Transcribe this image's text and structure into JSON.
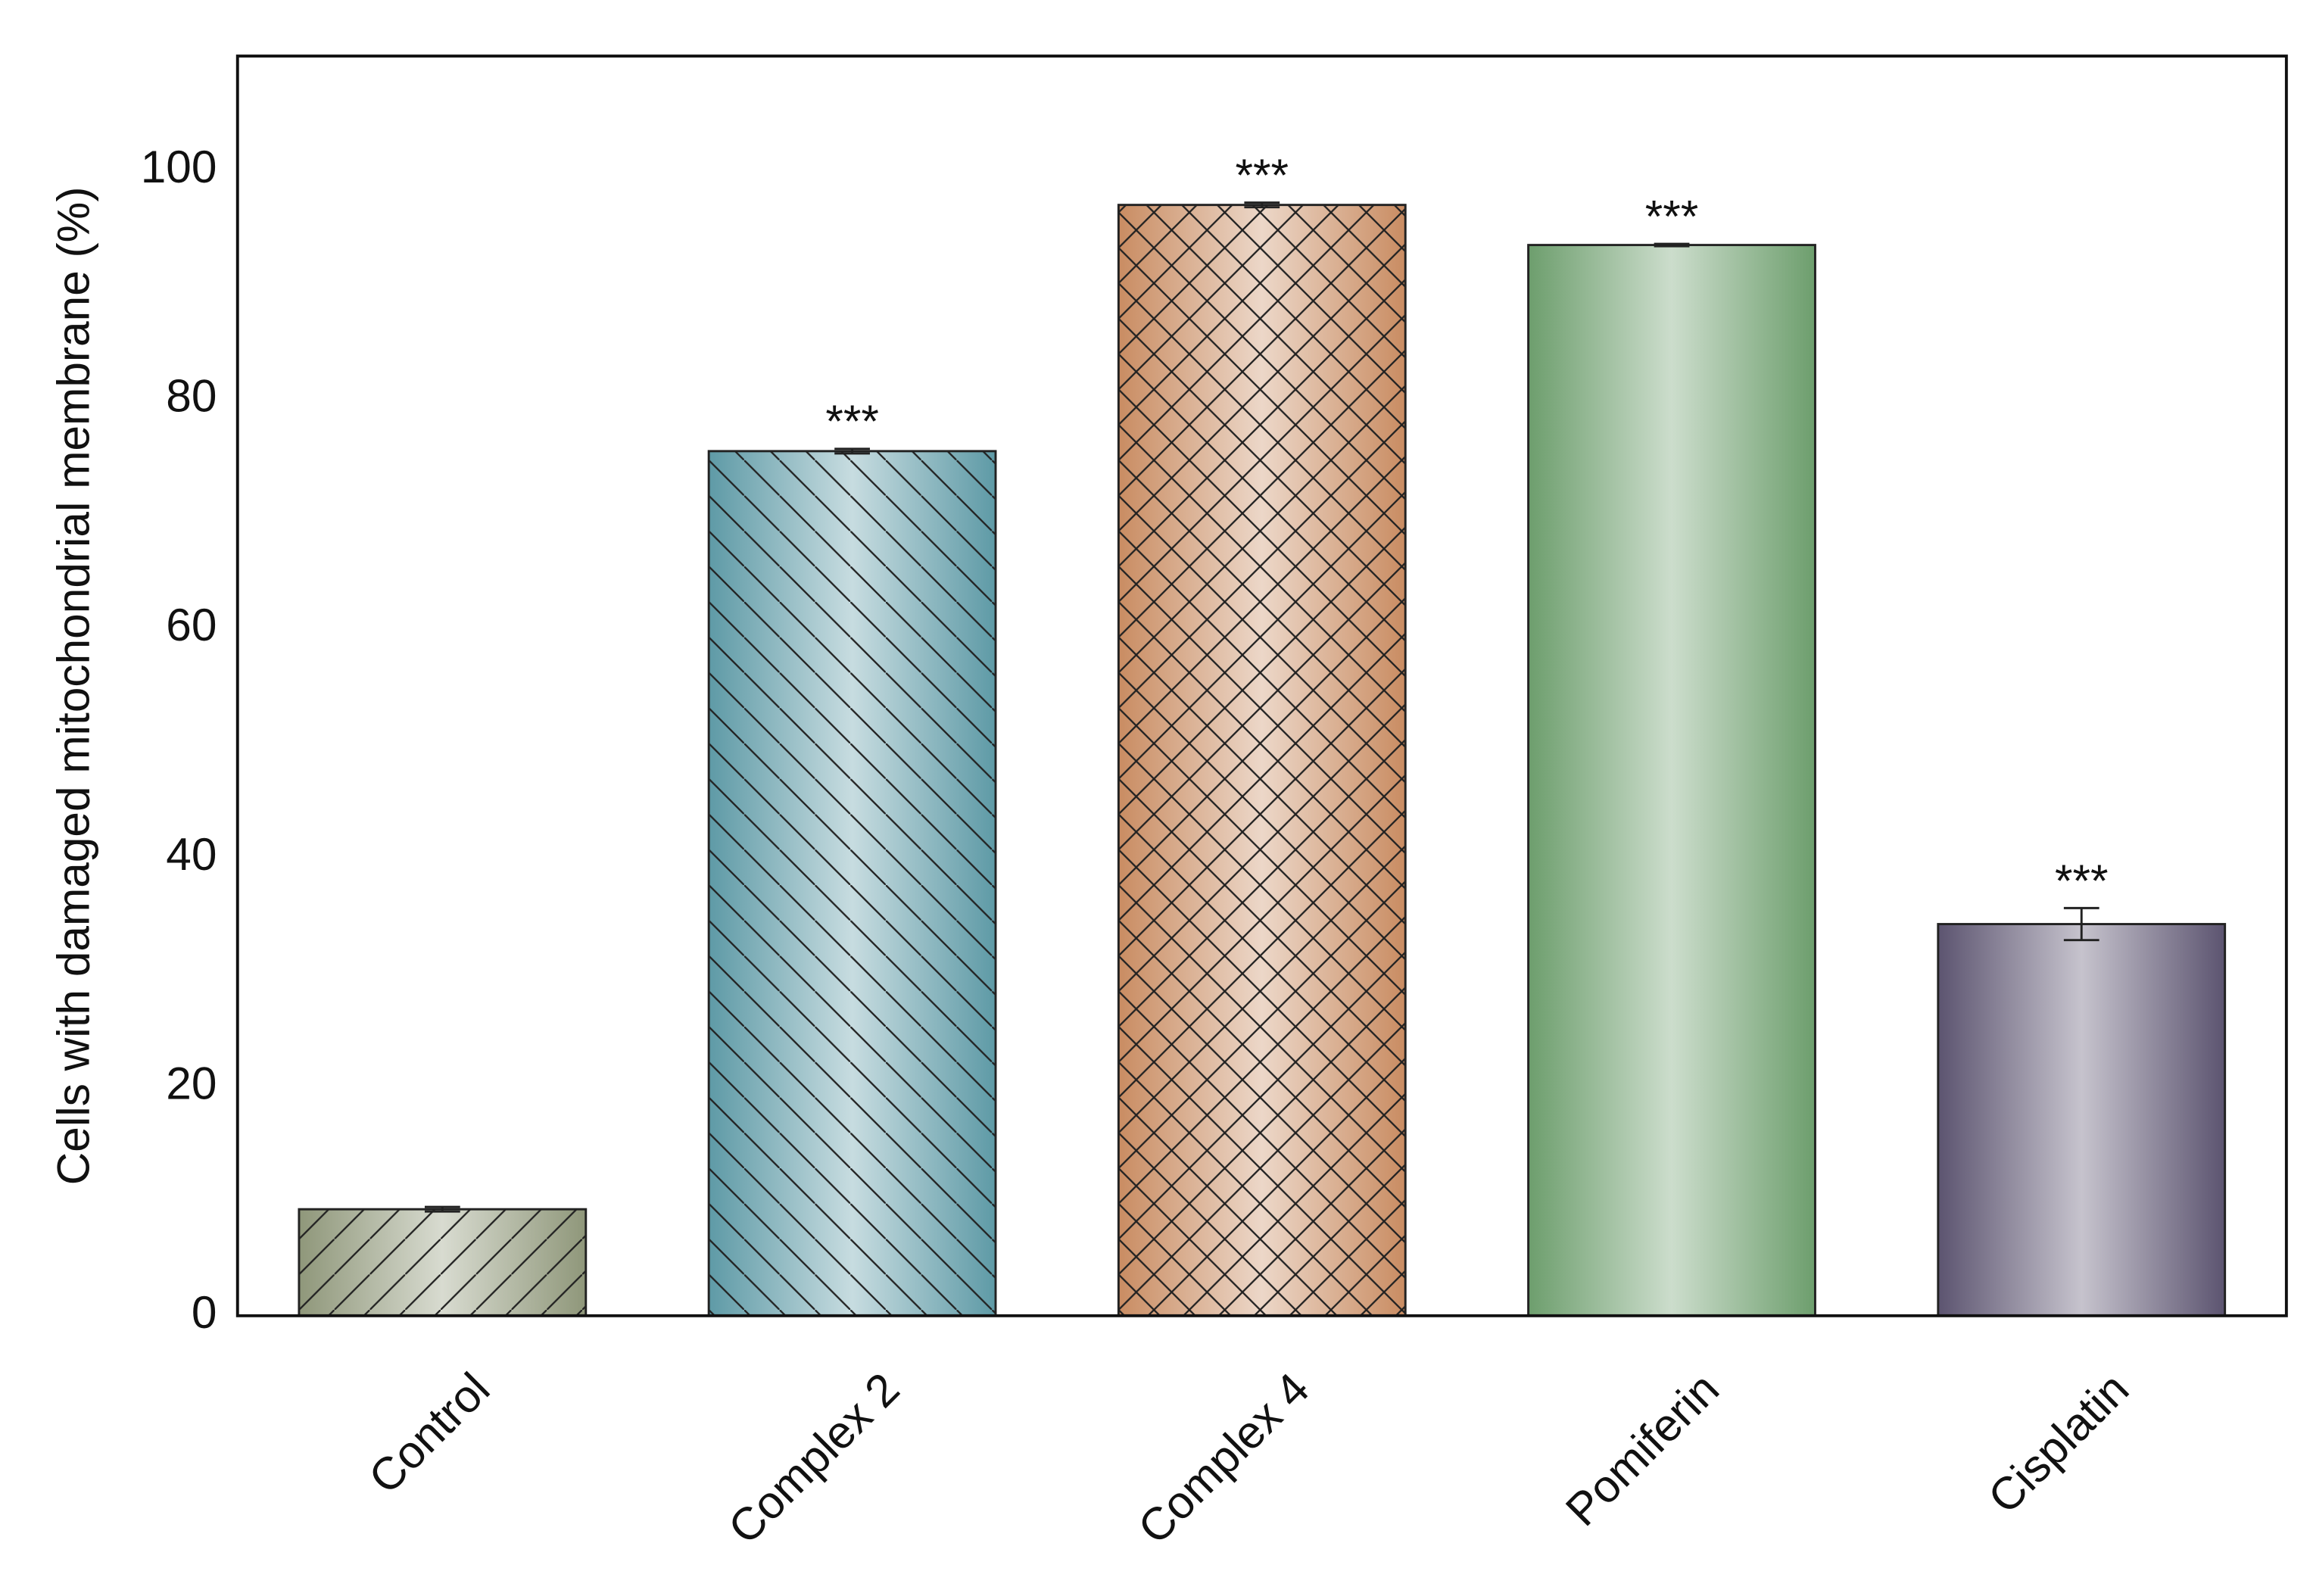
{
  "chart_data": {
    "type": "bar",
    "y_label": "Cells with damaged mitochondrial membrane (%)",
    "categories": [
      "Control",
      "Complex 2",
      "Complex 4",
      "Pomiferin",
      "Cisplatin"
    ],
    "values": [
      9.3,
      75.5,
      97,
      93.5,
      34.2
    ],
    "errors": [
      0.2,
      0.2,
      0.2,
      0.1,
      1.4
    ],
    "annotations": [
      null,
      "***",
      "***",
      "***",
      "***"
    ],
    "colors": [
      "#8f977a",
      "#5e9aa6",
      "#c98c62",
      "#6d9e6d",
      "#5c5470"
    ],
    "hatches": [
      "/",
      "\\",
      "x",
      null,
      null
    ],
    "ylim": [
      0,
      110
    ],
    "yticks": [
      0,
      20,
      40,
      60,
      80,
      100
    ],
    "grid": false
  }
}
